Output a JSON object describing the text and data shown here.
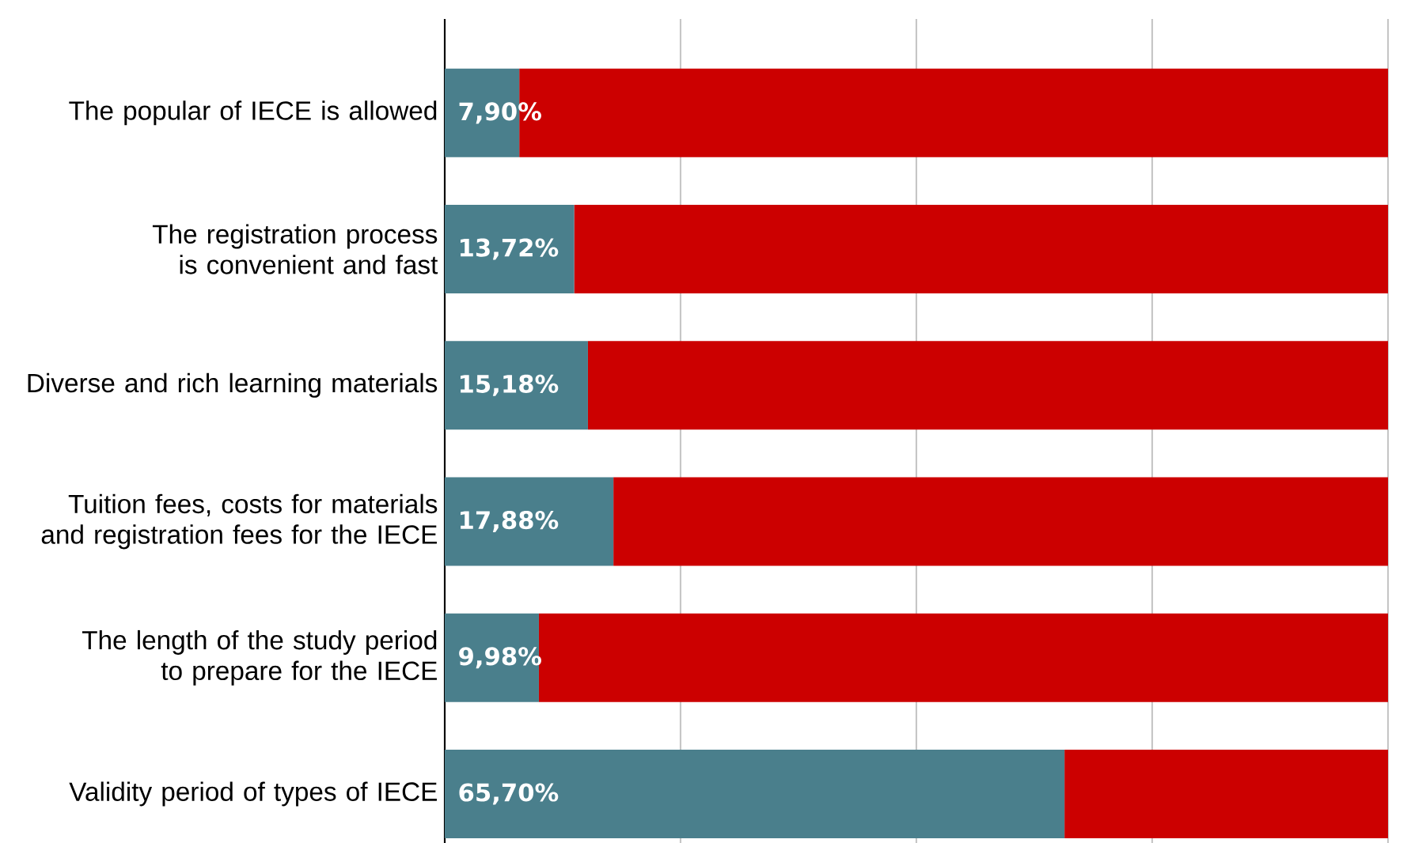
{
  "chart_data": {
    "type": "bar",
    "orientation": "horizontal",
    "stacked": true,
    "categories": [
      "The popular of IECE is allowed",
      "The registration process is convenient and fast",
      "Diverse and rich learning materials",
      "Tuition fees, costs for materials and registration fees for the IECE",
      "The length of the study period to prepare for the IECE",
      "Validity period of types of IECE"
    ],
    "series": [
      {
        "color": "#4a7f8c",
        "values": [
          7.9,
          13.72,
          15.18,
          17.88,
          9.98,
          65.7
        ],
        "value_labels": [
          "7,90%",
          "13,72%",
          "15,18%",
          "17,88%",
          "9,98%",
          "65,70%"
        ]
      },
      {
        "color": "#cc0000",
        "values": [
          92.1,
          86.28,
          84.82,
          82.12,
          90.02,
          34.3
        ]
      }
    ],
    "xlim": [
      0,
      100
    ],
    "xticks": [
      {
        "value": 0,
        "label": null
      },
      {
        "value": 25,
        "label": null
      },
      {
        "value": 50,
        "label": null
      },
      {
        "value": 75,
        "label": null
      },
      {
        "value": 100,
        "label": null
      }
    ],
    "grid": "x",
    "tick_labels": "y"
  }
}
